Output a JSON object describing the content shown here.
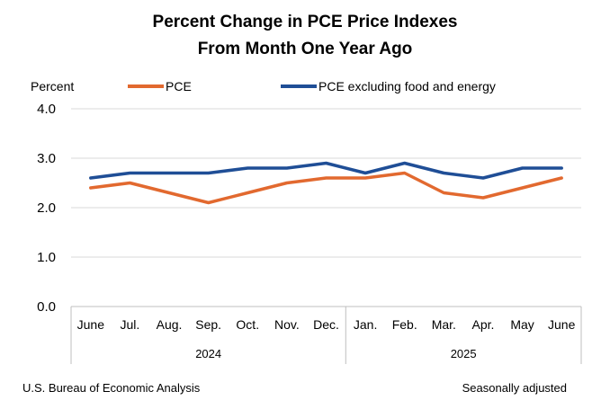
{
  "chart_data": {
    "type": "line",
    "title": [
      "Percent Change in PCE Price Indexes",
      "From Month One Year Ago"
    ],
    "ylabel": "Percent",
    "ylim": [
      0,
      4
    ],
    "yticks": [
      "0.0",
      "1.0",
      "2.0",
      "3.0",
      "4.0"
    ],
    "categories": [
      "June",
      "Jul.",
      "Aug.",
      "Sep.",
      "Oct.",
      "Nov.",
      "Dec.",
      "Jan.",
      "Feb.",
      "Mar.",
      "Apr.",
      "May",
      "June"
    ],
    "year_groups": [
      {
        "label": "2024",
        "start": 0,
        "end": 6
      },
      {
        "label": "2025",
        "start": 7,
        "end": 12
      }
    ],
    "series": [
      {
        "name": "PCE",
        "color": "#e2692f",
        "values": [
          2.4,
          2.5,
          2.3,
          2.1,
          2.3,
          2.5,
          2.6,
          2.6,
          2.7,
          2.3,
          2.2,
          2.4,
          2.6
        ]
      },
      {
        "name": "PCE excluding food and energy",
        "color": "#1f4e96",
        "values": [
          2.6,
          2.7,
          2.7,
          2.7,
          2.8,
          2.8,
          2.9,
          2.7,
          2.9,
          2.7,
          2.6,
          2.8,
          2.8
        ]
      }
    ],
    "grid": true,
    "legend_position": "top"
  },
  "footer": {
    "source": "U.S. Bureau of Economic Analysis",
    "note": "Seasonally adjusted"
  }
}
